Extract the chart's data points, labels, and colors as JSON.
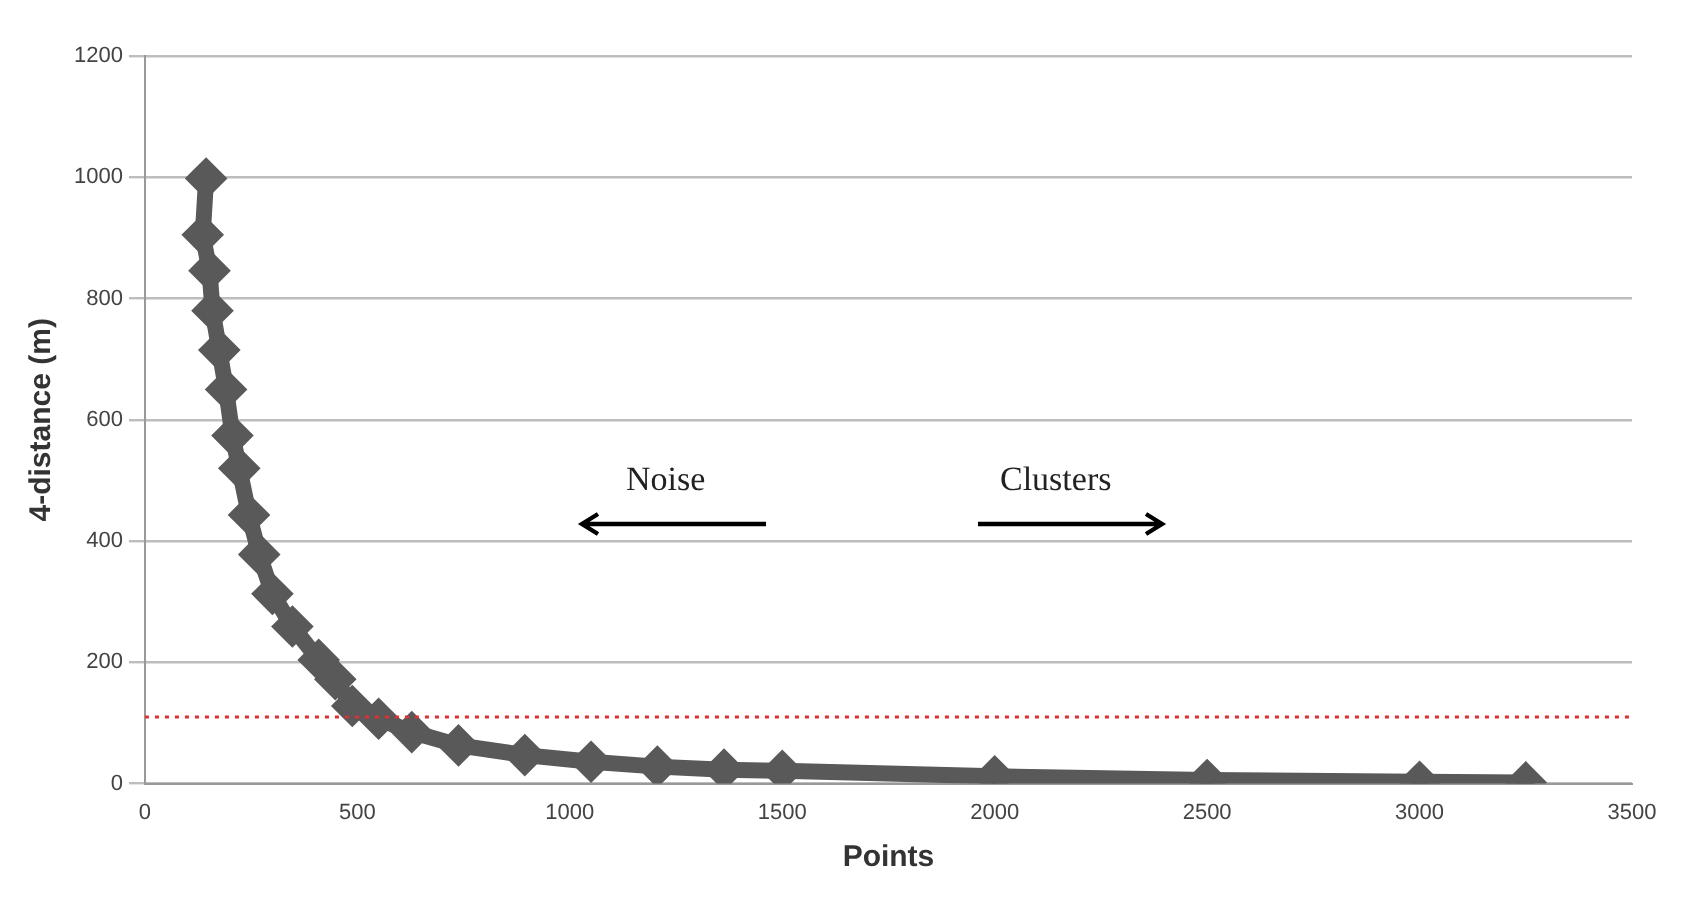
{
  "chart_data": {
    "type": "line",
    "xlabel": "Points",
    "ylabel": "4-distance (m)",
    "x": [
      144,
      136,
      152,
      159,
      175,
      191,
      206,
      222,
      245,
      269,
      300,
      347,
      409,
      448,
      488,
      550,
      628,
      738,
      894,
      1050,
      1206,
      1363,
      1500,
      2000,
      2500,
      3000,
      3250
    ],
    "series": [
      {
        "color": "#595959",
        "values": [
          998,
          905,
          846,
          780,
          715,
          650,
          574,
          520,
          443,
          378,
          313,
          259,
          204,
          172,
          128,
          107,
          85,
          63,
          47,
          36,
          28,
          23,
          21,
          12,
          6,
          3,
          2
        ]
      }
    ],
    "marker": "diamond",
    "line_style": "solid",
    "xlim": [
      0,
      3500
    ],
    "xticks": [
      0,
      500,
      1000,
      1500,
      2000,
      2500,
      3000,
      3500
    ],
    "ylim": [
      0,
      1200
    ],
    "yticks": [
      0,
      200,
      400,
      600,
      800,
      1000,
      1200
    ],
    "grid": "y",
    "legend": false,
    "ref_lines": [
      {
        "axis": "y",
        "value": 110,
        "color": "#e03030",
        "line_style": "dotted"
      }
    ],
    "annotations": [
      "Noise",
      "Clusters"
    ]
  }
}
